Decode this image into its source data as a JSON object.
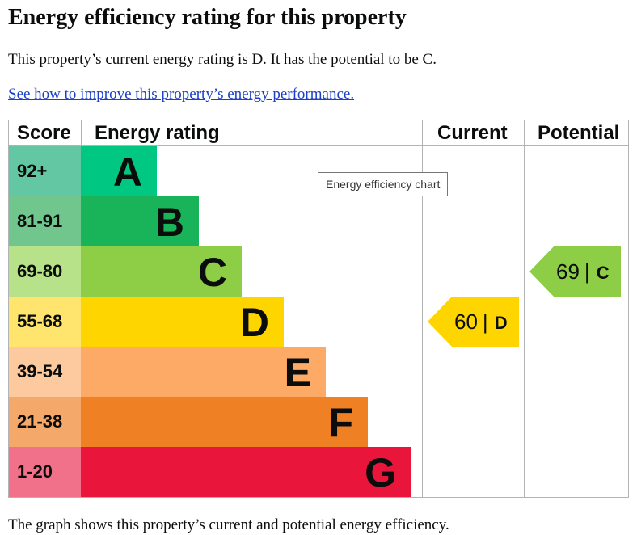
{
  "heading": "Energy efficiency rating for this property",
  "summary": "This property’s current energy rating is D. It has the potential to be C.",
  "improve_link": "See how to improve this property’s energy performance.",
  "chart": {
    "headers": {
      "score": "Score",
      "rating": "Energy rating",
      "current": "Current",
      "potential": "Potential"
    },
    "tooltip": "Energy efficiency chart",
    "bands": [
      {
        "score": "92+",
        "letter": "A",
        "color": "#00c781",
        "score_bg": "#64c7a4",
        "bar_fraction": 0.18
      },
      {
        "score": "81-91",
        "letter": "B",
        "color": "#19b459",
        "score_bg": "#71c68e",
        "bar_fraction": 0.28
      },
      {
        "score": "69-80",
        "letter": "C",
        "color": "#8dce46",
        "score_bg": "#b7e28a",
        "bar_fraction": 0.38
      },
      {
        "score": "55-68",
        "letter": "D",
        "color": "#ffd500",
        "score_bg": "#ffe56d",
        "bar_fraction": 0.48
      },
      {
        "score": "39-54",
        "letter": "E",
        "color": "#fcaa65",
        "score_bg": "#fdca9f",
        "bar_fraction": 0.58
      },
      {
        "score": "21-38",
        "letter": "F",
        "color": "#ef8023",
        "score_bg": "#f4a96b",
        "bar_fraction": 0.68
      },
      {
        "score": "1-20",
        "letter": "G",
        "color": "#e9153b",
        "score_bg": "#f1718a",
        "bar_fraction": 0.78
      }
    ],
    "current": {
      "value": "60",
      "separator": "|",
      "letter": "D",
      "color": "#ffd500",
      "band": 3
    },
    "potential": {
      "value": "69",
      "separator": "|",
      "letter": "C",
      "color": "#8dce46",
      "band": 2
    }
  },
  "footer_text": "The graph shows this property’s current and potential energy efficiency."
}
